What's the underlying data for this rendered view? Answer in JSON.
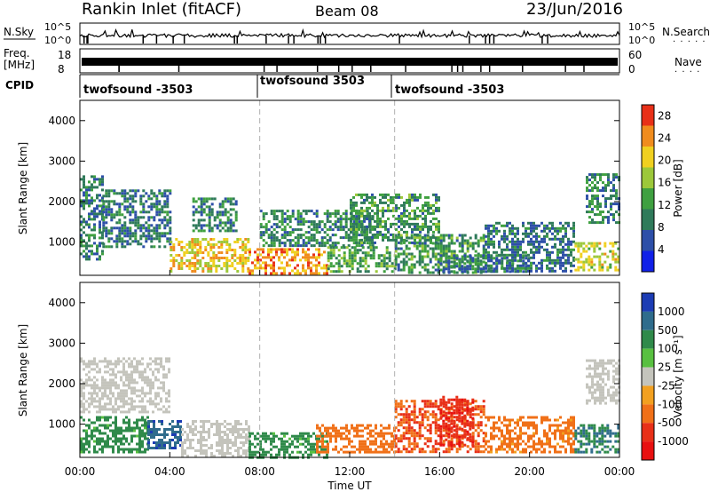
{
  "header": {
    "station": "Rankin Inlet (fitACF)",
    "beam": "Beam 08",
    "date": "23/Jun/2016"
  },
  "strips": {
    "nsky_label": "N.Sky",
    "nsky_ticks": [
      "10^5",
      "10^0"
    ],
    "nsearch_label": "N.Search",
    "freq_label_line1": "Freq.",
    "freq_label_line2": "[MHz]",
    "freq_ticks": [
      "18",
      "8"
    ],
    "nave_label": "Nave",
    "nave_ticks": [
      "60",
      "0"
    ],
    "cpid_label": "CPID",
    "cpid_segments": [
      "twofsound -3503",
      "twofsound 3503",
      "twofsound -3503"
    ]
  },
  "colors": {
    "nsky": "#000000",
    "freq": "#000000",
    "boundary_dash": "#b0b0b0",
    "ground_scatter": "#c4c4bc"
  },
  "chart_data": [
    {
      "type": "heatmap",
      "panel": "power",
      "xlabel": "",
      "ylabel": "Slant Range [km]",
      "xlim": [
        0,
        24
      ],
      "ylim": [
        180,
        4500
      ],
      "x_ticks": [
        "00:00",
        "04:00",
        "08:00",
        "12:00",
        "16:00",
        "20:00",
        "00:00"
      ],
      "y_ticks": [
        1000,
        2000,
        3000,
        4000
      ],
      "colorbar_label": "Power [dB]",
      "colorbar_ticks": [
        4,
        8,
        12,
        16,
        20,
        24,
        28
      ],
      "colorbar_range": [
        0,
        30
      ],
      "colorbar_colors": [
        "#1020e8",
        "#2d4fa8",
        "#2f7a5a",
        "#3fa040",
        "#9cc83a",
        "#f0d020",
        "#f08c1e",
        "#e83018"
      ],
      "scheduling_boundaries_hours": [
        8.0,
        14.0
      ],
      "scatter_regions": [
        {
          "t0": 0.0,
          "t1": 1.0,
          "r0": 600,
          "r1": 2650,
          "level": 10
        },
        {
          "t0": 1.0,
          "t1": 4.0,
          "r0": 900,
          "r1": 2300,
          "level": 9
        },
        {
          "t0": 4.0,
          "t1": 7.5,
          "r0": 300,
          "r1": 1100,
          "level": 22
        },
        {
          "t0": 5.0,
          "t1": 7.0,
          "r0": 1300,
          "r1": 2100,
          "level": 10
        },
        {
          "t0": 7.5,
          "t1": 11.0,
          "r0": 250,
          "r1": 850,
          "level": 25
        },
        {
          "t0": 8.0,
          "t1": 13.0,
          "r0": 900,
          "r1": 1800,
          "level": 11
        },
        {
          "t0": 11.0,
          "t1": 14.0,
          "r0": 250,
          "r1": 900,
          "level": 14
        },
        {
          "t0": 12.0,
          "t1": 16.0,
          "r0": 1000,
          "r1": 2200,
          "level": 12
        },
        {
          "t0": 14.0,
          "t1": 18.0,
          "r0": 250,
          "r1": 1200,
          "level": 12
        },
        {
          "t0": 16.0,
          "t1": 20.0,
          "r0": 300,
          "r1": 700,
          "level": 10
        },
        {
          "t0": 18.0,
          "t1": 22.0,
          "r0": 300,
          "r1": 1500,
          "level": 9
        },
        {
          "t0": 22.0,
          "t1": 24.0,
          "r0": 300,
          "r1": 1000,
          "level": 20
        },
        {
          "t0": 22.5,
          "t1": 24.0,
          "r0": 1500,
          "r1": 2700,
          "level": 11
        }
      ]
    },
    {
      "type": "heatmap",
      "panel": "velocity",
      "xlabel": "Time UT",
      "ylabel": "Slant Range [km]",
      "xlim": [
        0,
        24
      ],
      "ylim": [
        180,
        4500
      ],
      "x_ticks": [
        "00:00",
        "04:00",
        "08:00",
        "12:00",
        "16:00",
        "20:00",
        "00:00"
      ],
      "y_ticks": [
        1000,
        2000,
        3000,
        4000
      ],
      "colorbar_label": "Velocity [m s⁻¹]",
      "colorbar_ticks": [
        "1000",
        "500",
        "100",
        "25",
        "-25",
        "-100",
        "-500",
        "-1000"
      ],
      "colorbar_colors": [
        "#1c3cb4",
        "#2f6c8c",
        "#2f8a4a",
        "#58c040",
        "#c4c4bc",
        "#f2a020",
        "#f07018",
        "#e83018",
        "#e81010"
      ],
      "scheduling_boundaries_hours": [
        8.0,
        14.0
      ],
      "scatter_regions": [
        {
          "t0": 0.0,
          "t1": 4.0,
          "r0": 1300,
          "r1": 2650,
          "velocity": 0
        },
        {
          "t0": 0.0,
          "t1": 3.0,
          "r0": 300,
          "r1": 1200,
          "velocity": 150
        },
        {
          "t0": 3.0,
          "t1": 4.5,
          "r0": 400,
          "r1": 1100,
          "velocity": 700
        },
        {
          "t0": 4.5,
          "t1": 7.5,
          "r0": 200,
          "r1": 1100,
          "velocity": 0
        },
        {
          "t0": 7.5,
          "t1": 11.0,
          "r0": 200,
          "r1": 800,
          "velocity": 150
        },
        {
          "t0": 10.5,
          "t1": 14.0,
          "r0": 300,
          "r1": 1000,
          "velocity": -200
        },
        {
          "t0": 14.0,
          "t1": 18.0,
          "r0": 300,
          "r1": 1600,
          "velocity": -300
        },
        {
          "t0": 16.0,
          "t1": 17.5,
          "r0": 500,
          "r1": 1700,
          "velocity": -700
        },
        {
          "t0": 18.0,
          "t1": 22.0,
          "r0": 300,
          "r1": 1200,
          "velocity": -150
        },
        {
          "t0": 22.0,
          "t1": 24.0,
          "r0": 300,
          "r1": 1000,
          "velocity": 300
        },
        {
          "t0": 22.5,
          "t1": 24.0,
          "r0": 1500,
          "r1": 2600,
          "velocity": 0
        }
      ]
    }
  ]
}
